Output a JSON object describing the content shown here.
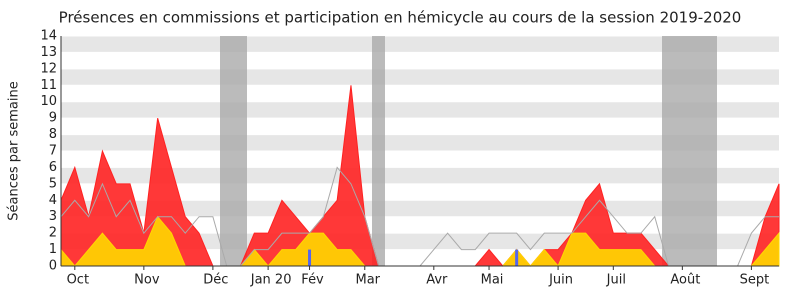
{
  "chart_data": {
    "type": "area",
    "title": "Présences en commissions et participation en hémicycle au cours de la session 2019-2020",
    "y_label": "Séances par semaine",
    "categories": [
      null,
      "Oct",
      null,
      null,
      null,
      null,
      "Nov",
      null,
      null,
      null,
      null,
      "Déc",
      null,
      null,
      null,
      "Jan 20",
      null,
      null,
      "Fév",
      null,
      null,
      null,
      "Mar",
      null,
      null,
      null,
      null,
      "Avr",
      null,
      null,
      null,
      "Mai",
      null,
      null,
      null,
      null,
      "Juin",
      null,
      null,
      null,
      "Juil",
      null,
      null,
      null,
      null,
      "Août",
      null,
      null,
      null,
      null,
      "Sept",
      null,
      null
    ],
    "series": [
      {
        "color": "#ff2222",
        "kind": "area",
        "values": [
          4,
          6,
          3,
          7,
          5,
          5,
          2,
          9,
          6,
          3,
          2,
          0,
          0,
          0,
          2,
          2,
          4,
          3,
          2,
          3,
          4,
          11,
          3,
          0,
          0,
          0,
          0,
          0,
          0,
          0,
          0,
          1,
          0,
          1,
          0,
          1,
          1,
          2,
          4,
          5,
          2,
          2,
          2,
          1,
          0,
          0,
          0,
          0,
          0,
          0,
          0,
          3,
          5
        ]
      },
      {
        "color": "#ffd700",
        "kind": "area",
        "values": [
          1,
          0,
          1,
          2,
          1,
          1,
          1,
          3,
          2,
          0,
          0,
          0,
          0,
          0,
          1,
          0,
          1,
          1,
          2,
          2,
          1,
          1,
          0,
          0,
          0,
          0,
          0,
          0,
          0,
          0,
          0,
          0,
          0,
          1,
          0,
          1,
          0,
          2,
          2,
          1,
          1,
          1,
          1,
          0,
          0,
          0,
          0,
          0,
          0,
          0,
          0,
          1,
          2
        ]
      },
      {
        "color": "#aaaaaa",
        "kind": "line",
        "values": [
          3,
          4,
          3,
          5,
          3,
          4,
          2,
          3,
          3,
          2,
          3,
          3,
          0,
          0,
          1,
          1,
          2,
          2,
          2,
          3,
          6,
          5,
          3,
          0,
          0,
          0,
          0,
          1,
          2,
          1,
          1,
          2,
          2,
          2,
          1,
          2,
          2,
          2,
          3,
          4,
          3,
          2,
          2,
          3,
          0,
          0,
          0,
          0,
          0,
          0,
          2,
          3,
          3
        ]
      },
      {
        "color": "#5566ee",
        "kind": "bar",
        "values": [
          null,
          null,
          null,
          null,
          null,
          null,
          null,
          null,
          null,
          null,
          null,
          null,
          null,
          null,
          null,
          null,
          null,
          null,
          1,
          null,
          null,
          null,
          null,
          null,
          null,
          null,
          null,
          null,
          null,
          null,
          null,
          null,
          null,
          1,
          null,
          null,
          null,
          null,
          null,
          null,
          null,
          null,
          null,
          null,
          null,
          null,
          null,
          null,
          null,
          null,
          null,
          null,
          null
        ]
      }
    ],
    "ylim": [
      0,
      14
    ],
    "yticks": [
      0,
      1,
      2,
      3,
      4,
      5,
      6,
      7,
      8,
      9,
      10,
      11,
      12,
      13,
      14
    ],
    "grid": true
  }
}
